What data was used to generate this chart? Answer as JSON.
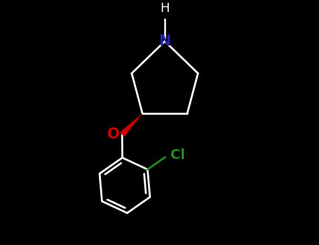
{
  "background_color": "#000000",
  "bond_color": "#ffffff",
  "N_color": "#2222aa",
  "O_color": "#cc0000",
  "Cl_color": "#228B22",
  "figsize": [
    4.55,
    3.5
  ],
  "dpi": 100,
  "lw": 2.0,
  "xlim": [
    -1.8,
    2.0
  ],
  "ylim": [
    -2.2,
    2.2
  ]
}
